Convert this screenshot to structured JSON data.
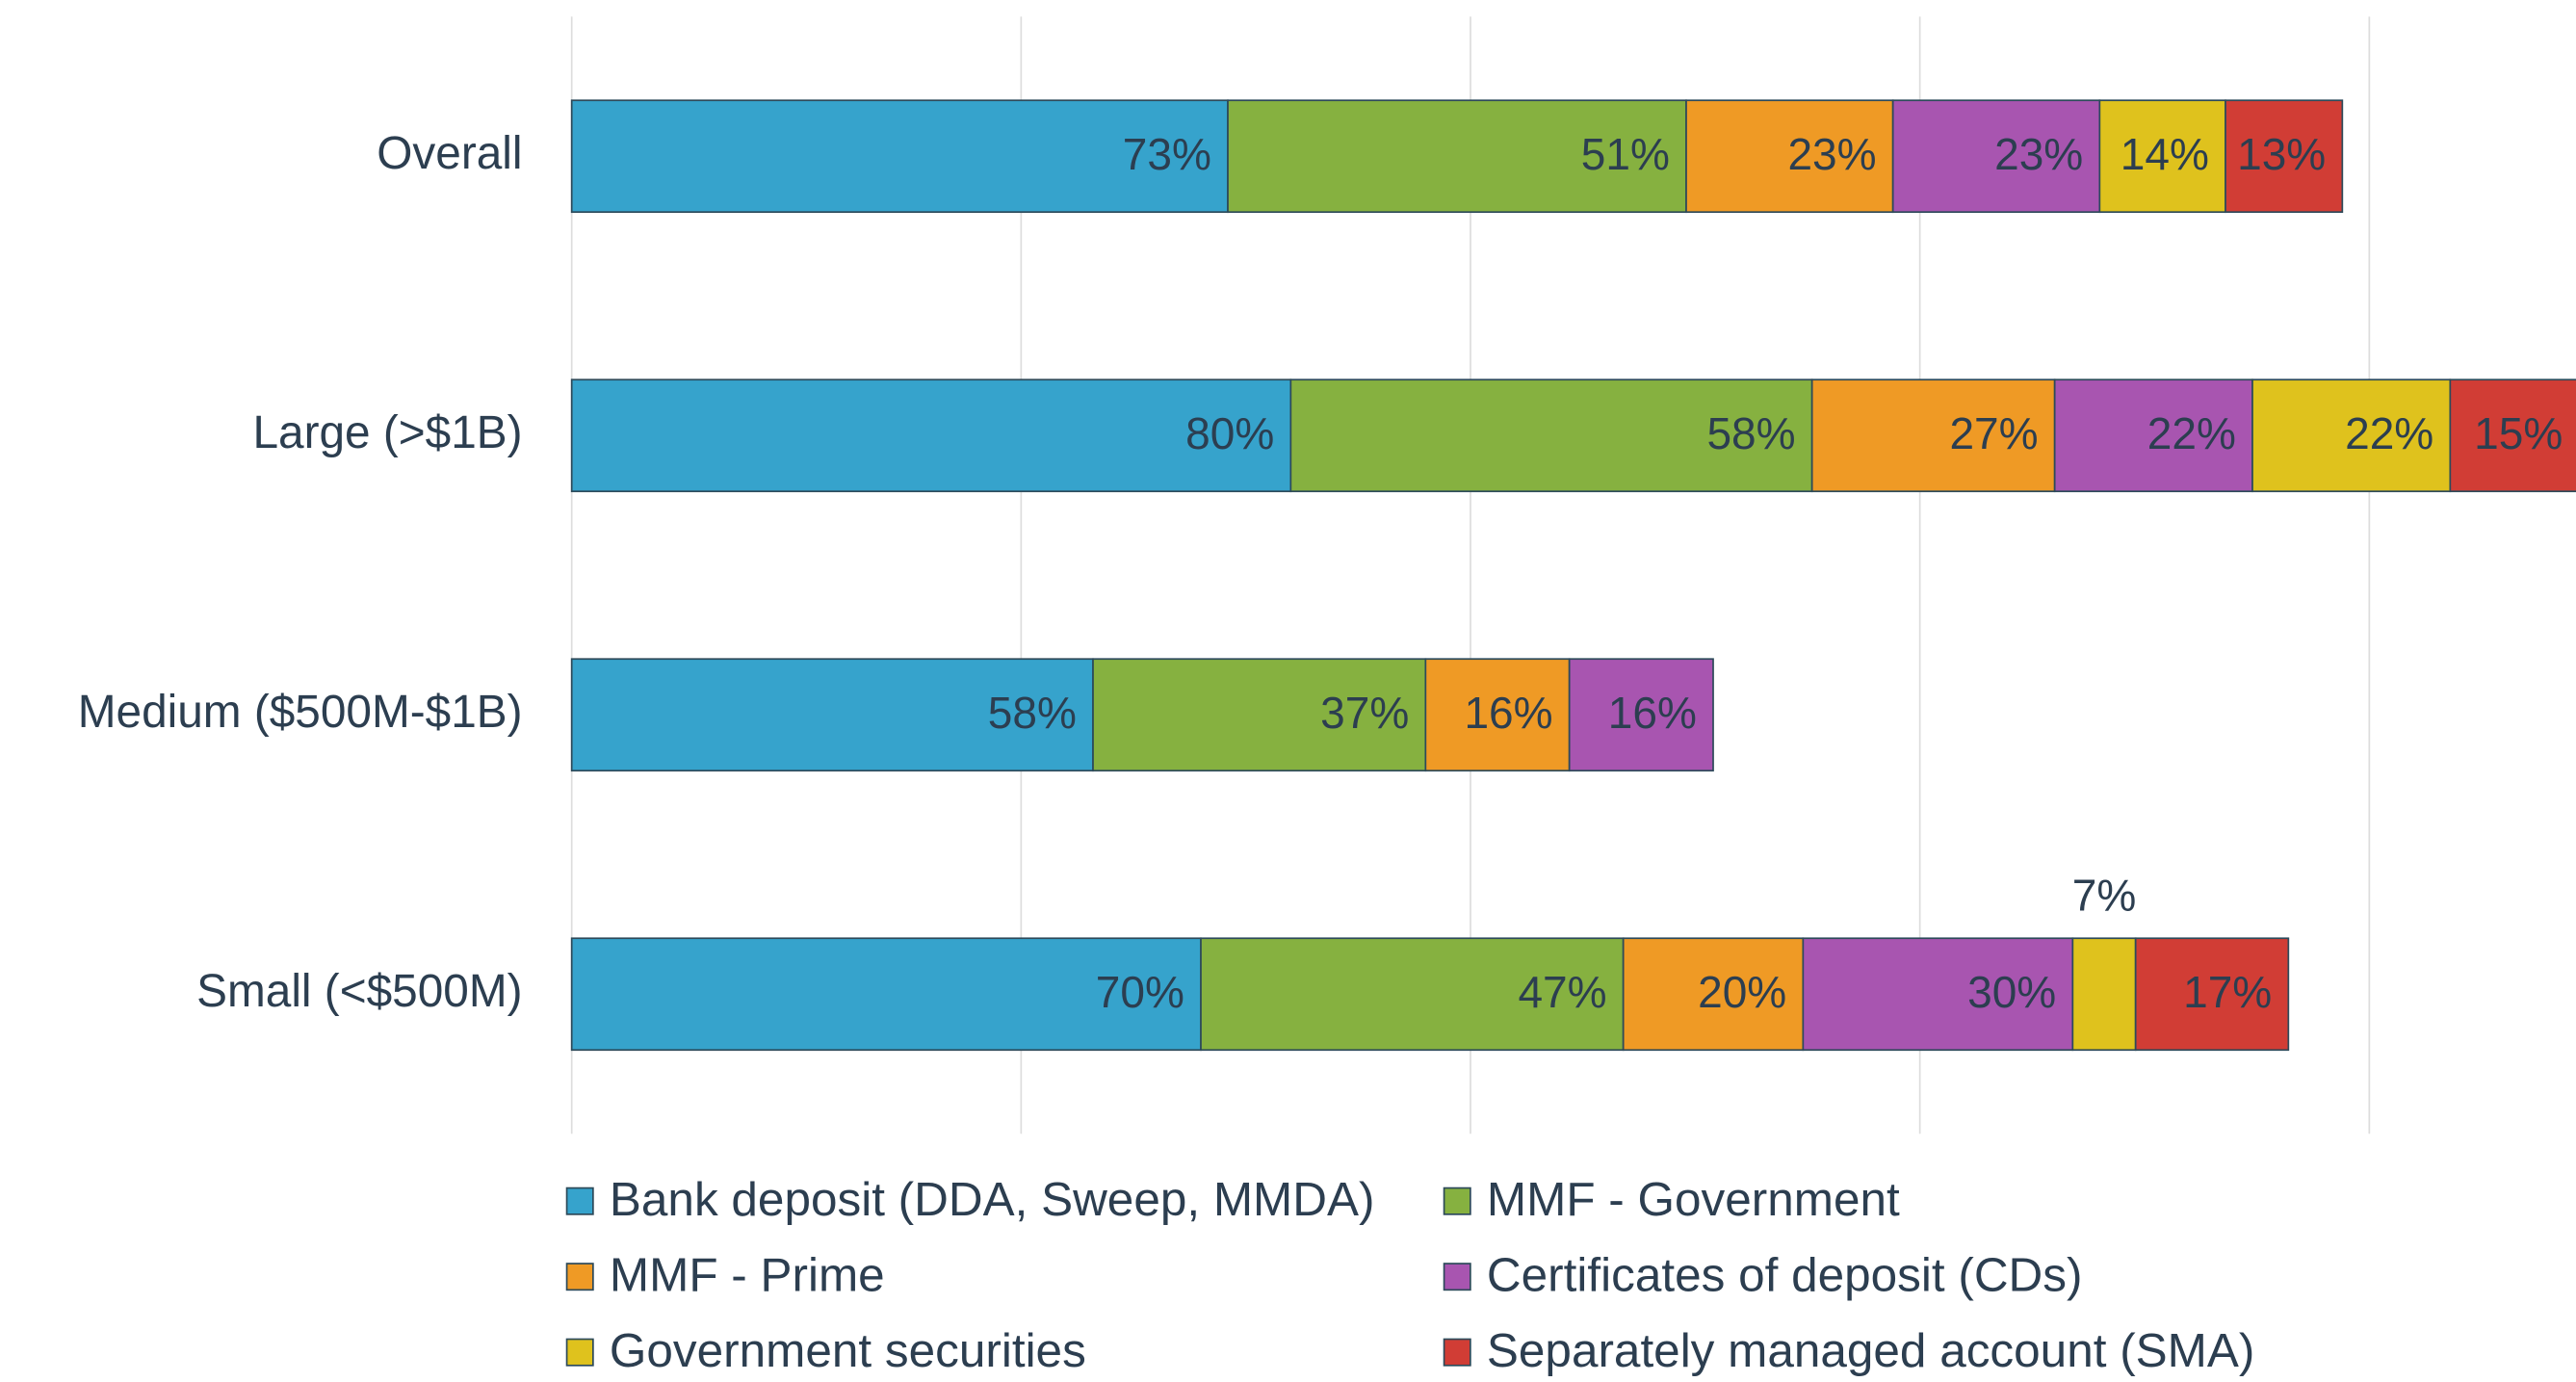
{
  "chart_data": {
    "type": "stacked-bar-horizontal",
    "categories": [
      "Overall",
      "Large (>$1B)",
      "Medium ($500M-$1B)",
      "Small (<$500M)"
    ],
    "series": [
      {
        "name": "Bank deposit (DDA, Sweep, MMDA)",
        "color": "#36a3cc",
        "values": [
          73,
          80,
          58,
          70
        ],
        "value_labels": [
          "73%",
          "80%",
          "58%",
          "70%"
        ]
      },
      {
        "name": "MMF - Government",
        "color": "#86b140",
        "values": [
          51,
          58,
          37,
          47
        ],
        "value_labels": [
          "51%",
          "58%",
          "37%",
          "47%"
        ]
      },
      {
        "name": "MMF - Prime",
        "color": "#ef9a25",
        "values": [
          23,
          27,
          16,
          20
        ],
        "value_labels": [
          "23%",
          "27%",
          "16%",
          "20%"
        ]
      },
      {
        "name": "Certificates of deposit (CDs)",
        "color": "#a855b0",
        "values": [
          23,
          22,
          16,
          30
        ],
        "value_labels": [
          "23%",
          "22%",
          "16%",
          "30%"
        ]
      },
      {
        "name": "Government securities",
        "color": "#dfc21d",
        "values": [
          14,
          22,
          null,
          7
        ],
        "value_labels": [
          "14%",
          "22%",
          null,
          "7%"
        ]
      },
      {
        "name": "Separately managed account (SMA)",
        "color": "#d13d35",
        "values": [
          13,
          15,
          null,
          17
        ],
        "value_labels": [
          "13%",
          "15%",
          null,
          "17%"
        ]
      }
    ],
    "xlim": [
      0,
      223
    ],
    "xticks": [
      0,
      50,
      100,
      150,
      200
    ],
    "grid": true,
    "legend": "bottom"
  }
}
